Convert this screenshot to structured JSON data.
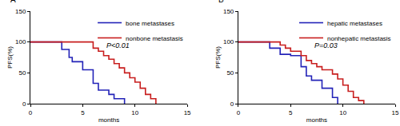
{
  "chart_data": [
    {
      "type": "step",
      "title": "A",
      "xlabel": "months",
      "ylabel": "PFS(%)",
      "xlim": [
        0,
        15
      ],
      "xticks": [
        0,
        5,
        10,
        15
      ],
      "ylim": [
        0,
        150
      ],
      "yticks": [
        0,
        50,
        100,
        150
      ],
      "grid": false,
      "legend": "upper right",
      "annotations": [
        "P<0.01"
      ],
      "series": [
        {
          "name": "bone metastases",
          "color": "#2323b8",
          "x": [
            0,
            3,
            3.7,
            4,
            5,
            6,
            6.5,
            7.5,
            8,
            9
          ],
          "values": [
            100,
            88,
            75,
            68,
            55,
            33,
            22,
            15,
            8,
            0
          ]
        },
        {
          "name": "nonbone metastasis",
          "color": "#c81e1e",
          "x": [
            0,
            6,
            6.5,
            7,
            7.5,
            8,
            8.5,
            9,
            9.5,
            10,
            10.5,
            11,
            11.5,
            12
          ],
          "values": [
            100,
            90,
            85,
            78,
            72,
            65,
            58,
            50,
            42,
            35,
            25,
            15,
            8,
            0
          ]
        }
      ]
    },
    {
      "type": "step",
      "title": "B",
      "xlabel": "months",
      "ylabel": "PFS(%)",
      "xlim": [
        0,
        15
      ],
      "xticks": [
        0,
        5,
        10,
        15
      ],
      "ylim": [
        0,
        150
      ],
      "yticks": [
        0,
        50,
        100,
        150
      ],
      "grid": false,
      "legend": "upper right",
      "annotations": [
        "P=0.03"
      ],
      "series": [
        {
          "name": "hepatic metastases",
          "color": "#2323b8",
          "x": [
            0,
            3,
            4,
            5,
            6,
            6.5,
            7,
            8,
            9,
            9.5
          ],
          "values": [
            100,
            90,
            80,
            78,
            60,
            45,
            38,
            25,
            10,
            0
          ]
        },
        {
          "name": "nonhepatic metastasis",
          "color": "#c81e1e",
          "x": [
            0,
            4,
            4.5,
            5,
            6,
            6.5,
            7,
            7.5,
            8,
            9,
            9.5,
            10,
            10.5,
            11,
            11.5,
            12
          ],
          "values": [
            100,
            95,
            90,
            85,
            78,
            70,
            65,
            60,
            55,
            48,
            40,
            30,
            20,
            10,
            5,
            0
          ]
        }
      ]
    }
  ]
}
